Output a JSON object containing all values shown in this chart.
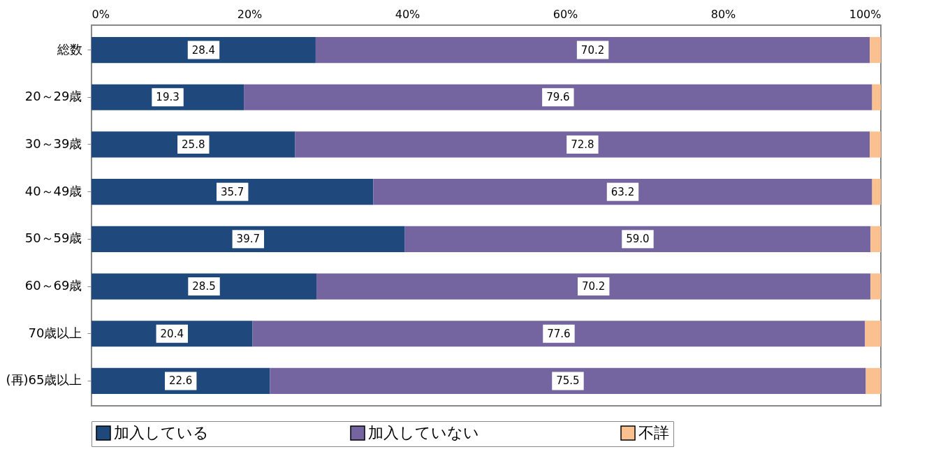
{
  "chart_data": {
    "type": "bar",
    "orientation": "horizontal",
    "stacked": true,
    "categories": [
      "総数",
      "20～29歳",
      "30～39歳",
      "40～49歳",
      "50～59歳",
      "60～69歳",
      "70歳以上",
      "(再)65歳以上"
    ],
    "series": [
      {
        "name": "加入している",
        "color": "#1f497d",
        "values": [
          28.4,
          19.3,
          25.8,
          35.7,
          39.7,
          28.5,
          20.4,
          22.6
        ],
        "value_labels": [
          "28.4",
          "19.3",
          "25.8",
          "35.7",
          "39.7",
          "28.5",
          "20.4",
          "22.6"
        ]
      },
      {
        "name": "加入していない",
        "color": "#7464a0",
        "values": [
          70.2,
          79.6,
          72.8,
          63.2,
          59.0,
          70.2,
          77.6,
          75.5
        ],
        "value_labels": [
          "70.2",
          "79.6",
          "72.8",
          "63.2",
          "59.0",
          "70.2",
          "77.6",
          "75.5"
        ]
      },
      {
        "name": "不詳",
        "color": "#fac090",
        "values": [
          1.4,
          1.1,
          1.4,
          1.1,
          1.3,
          1.3,
          2.0,
          1.9
        ]
      }
    ],
    "xlim": [
      0,
      100
    ],
    "xticks": [
      {
        "value": 0,
        "label": "0%"
      },
      {
        "value": 20,
        "label": "20%"
      },
      {
        "value": 40,
        "label": "40%"
      },
      {
        "value": 60,
        "label": "60%"
      },
      {
        "value": 80,
        "label": "80%"
      },
      {
        "value": 100,
        "label": "100%"
      }
    ],
    "legend": "bottom",
    "grid": false
  }
}
